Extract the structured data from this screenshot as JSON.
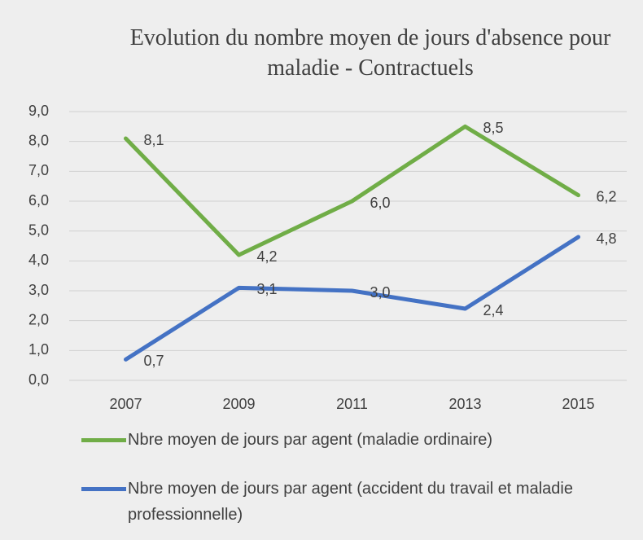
{
  "chart_data": {
    "type": "line",
    "title": "Evolution du nombre moyen de jours d'absence pour maladie - Contractuels",
    "categories": [
      "2007",
      "2009",
      "2011",
      "2013",
      "2015"
    ],
    "series": [
      {
        "name": "Nbre moyen de jours par agent (maladie ordinaire)",
        "color": "#70ad47",
        "values": [
          8.1,
          4.2,
          6.0,
          8.5,
          6.2
        ],
        "value_labels": [
          "8,1",
          "4,2",
          "6,0",
          "8,5",
          "6,2"
        ]
      },
      {
        "name": "Nbre moyen de jours par agent (accident du travail et maladie professionnelle)",
        "color": "#4472c4",
        "values": [
          0.7,
          3.1,
          3.0,
          2.4,
          4.8
        ],
        "value_labels": [
          "0,7",
          "3,1",
          "3,0",
          "2,4",
          "4,8"
        ]
      }
    ],
    "ylim": [
      0,
      9
    ],
    "yticks": [
      {
        "value": 0,
        "label": "0,0"
      },
      {
        "value": 1,
        "label": "1,0"
      },
      {
        "value": 2,
        "label": "2,0"
      },
      {
        "value": 3,
        "label": "3,0"
      },
      {
        "value": 4,
        "label": "4,0"
      },
      {
        "value": 5,
        "label": "5,0"
      },
      {
        "value": 6,
        "label": "6,0"
      },
      {
        "value": 7,
        "label": "7,0"
      },
      {
        "value": 8,
        "label": "8,0"
      },
      {
        "value": 9,
        "label": "9,0"
      }
    ],
    "grid": true,
    "legend": "bottom"
  }
}
